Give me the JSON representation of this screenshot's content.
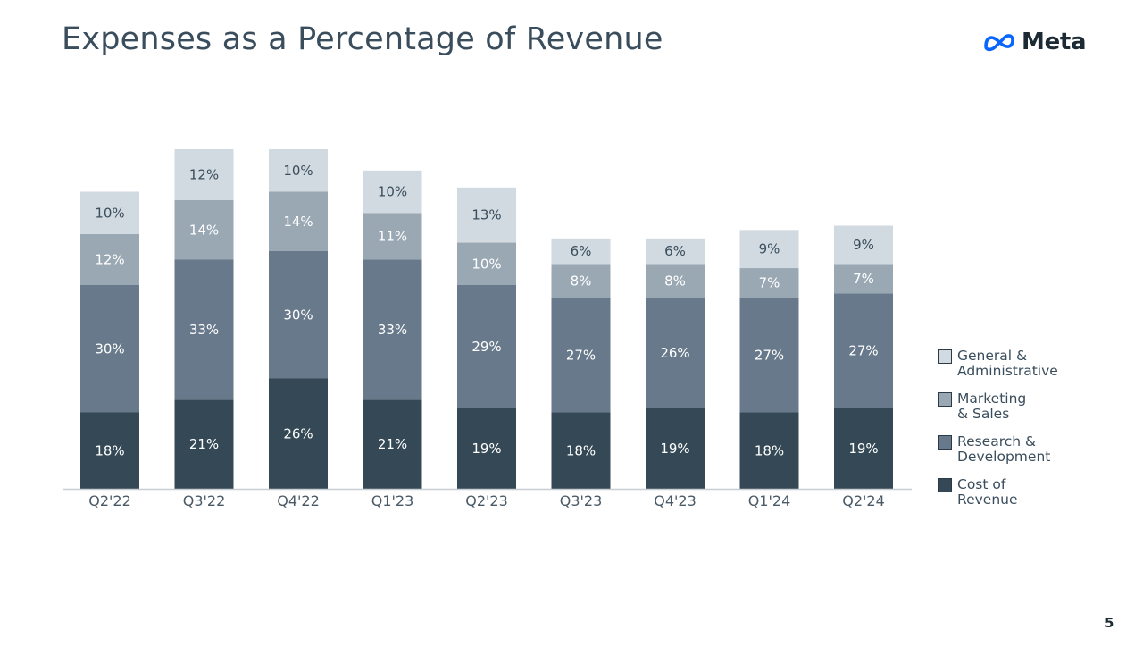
{
  "page": {
    "title": "Expenses as a Percentage of Revenue",
    "logo_text": "Meta",
    "page_number": "5"
  },
  "chart_data": {
    "type": "bar",
    "stacked": true,
    "title": "Expenses as a Percentage of Revenue",
    "xlabel": "",
    "ylabel": "",
    "ylim": [
      0,
      85
    ],
    "grid": false,
    "legend_position": "right",
    "categories": [
      "Q2'22",
      "Q3'22",
      "Q4'22",
      "Q1'23",
      "Q2'23",
      "Q3'23",
      "Q4'23",
      "Q1'24",
      "Q2'24"
    ],
    "series": [
      {
        "name": "Cost of Revenue",
        "legend_label": "Cost of\nRevenue",
        "color": "#344955",
        "label_color": "#ffffff",
        "values": [
          18,
          21,
          26,
          21,
          19,
          18,
          19,
          18,
          19
        ],
        "labels": [
          "18%",
          "21%",
          "26%",
          "21%",
          "19%",
          "18%",
          "19%",
          "18%",
          "19%"
        ]
      },
      {
        "name": "Research & Development",
        "legend_label": "Research &\nDevelopment",
        "color": "#67798a",
        "label_color": "#ffffff",
        "values": [
          30,
          33,
          30,
          33,
          29,
          27,
          26,
          27,
          27
        ],
        "labels": [
          "30%",
          "33%",
          "30%",
          "33%",
          "29%",
          "27%",
          "26%",
          "27%",
          "27%"
        ]
      },
      {
        "name": "Marketing & Sales",
        "legend_label": "Marketing\n& Sales",
        "color": "#9aa8b4",
        "label_color": "#ffffff",
        "values": [
          12,
          14,
          14,
          11,
          10,
          8,
          8,
          7,
          7
        ],
        "labels": [
          "12%",
          "14%",
          "14%",
          "11%",
          "10%",
          "8%",
          "8%",
          "7%",
          "7%"
        ]
      },
      {
        "name": "General & Administrative",
        "legend_label": "General &\nAdministrative",
        "color": "#d2dae1",
        "label_color": "#3a4d5c",
        "values": [
          10,
          12,
          10,
          10,
          13,
          6,
          6,
          9,
          9
        ],
        "labels": [
          "10%",
          "12%",
          "10%",
          "10%",
          "13%",
          "6%",
          "6%",
          "9%",
          "9%"
        ]
      }
    ],
    "axis_color": "#c8ced3"
  }
}
